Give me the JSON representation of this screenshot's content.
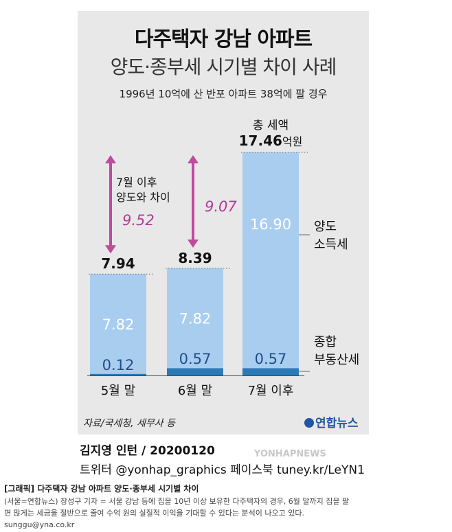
{
  "chart_data": {
    "type": "bar",
    "stacked": true,
    "title": "다주택자 강남 아파트",
    "subtitle": "양도·종부세 시기별 차이 사례",
    "caption": "1996년 10억에 산 반포 아파트 38억에 팔 경우",
    "categories": [
      "5월 말",
      "6월 말",
      "7월 이후"
    ],
    "series": [
      {
        "name": "양도\n소득세",
        "legend_line1": "양도",
        "legend_line2": "소득세",
        "values": [
          7.82,
          7.82,
          16.9
        ],
        "labels": [
          "7.82",
          "7.82",
          "16.90"
        ],
        "color": "#a9cdef"
      },
      {
        "name": "종합\n부동산세",
        "legend_line1": "종합",
        "legend_line2": "부동산세",
        "values": [
          0.12,
          0.57,
          0.57
        ],
        "labels": [
          "0.12",
          "0.57",
          "0.57"
        ],
        "color": "#2b7ab8"
      }
    ],
    "totals": [
      7.94,
      8.39,
      17.46
    ],
    "total_labels": [
      "7.94",
      "8.39",
      "17.46"
    ],
    "total_heading_line1": "총 세액",
    "total_unit": "억원",
    "differences": [
      {
        "from": 0,
        "value": 9.52,
        "label": "9.52",
        "heading_line1": "7월 이후",
        "heading_line2": "양도와 차이"
      },
      {
        "from": 1,
        "value": 9.07,
        "label": "9.07"
      }
    ],
    "ylim": [
      0,
      17.46
    ],
    "grid": false,
    "colors": {
      "difference": "#b23c96",
      "arrow": "#c04a9d",
      "text": "#111111"
    }
  },
  "source": "자료/국세청, 세무사 등",
  "logo": "연합뉴스",
  "credit": {
    "author": "김지영 인턴 / 20200120",
    "twitter": "트위터 @yonhap_graphics 페이스북 tuney.kr/LeYN1"
  },
  "watermark": "YONHAPNEWS",
  "article": {
    "tag": "[그래픽] 다주택자 강남 아파트 양도·종부세 시기별 차이",
    "line1": "(서울=연합뉴스) 장성구 기자 = 서울 강남 등에 집을 10년 이상 보유한 다주택자의 경우, 6월 말까지 집을 팔",
    "line2": "면 많게는 세금을 절반으로 줄여 수억 원의 실질적 이익을 기대할 수 있다는 분석이 나오고 있다.",
    "email": "sunggu@yna.co.kr"
  }
}
